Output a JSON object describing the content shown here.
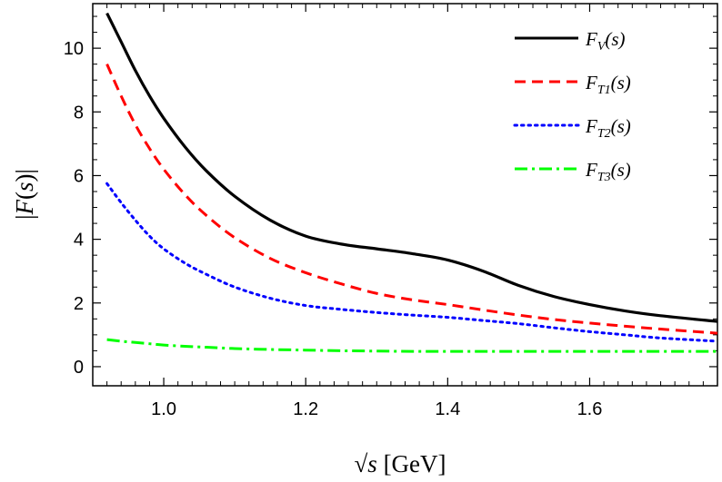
{
  "chart_data": {
    "type": "line",
    "xlabel": "√s [GeV]",
    "xlabel_parts": {
      "radical": "√",
      "var": "s",
      "unit": " [GeV]"
    },
    "ylabel": "|F(s)|",
    "ylabel_parts": {
      "bar_left": "|",
      "var": "F",
      "open": "(",
      "arg": "s",
      "close": ")",
      "bar_right": "|"
    },
    "xlim": [
      0.9,
      1.78
    ],
    "ylim": [
      -0.6,
      11.4
    ],
    "xticks": [
      1.0,
      1.2,
      1.4,
      1.6
    ],
    "xtick_labels": [
      "1.0",
      "1.2",
      "1.4",
      "1.6"
    ],
    "yticks": [
      0,
      2,
      4,
      6,
      8,
      10
    ],
    "ytick_labels": [
      "0",
      "2",
      "4",
      "6",
      "8",
      "10"
    ],
    "grid": false,
    "legend_position": "top-right",
    "x": [
      0.92,
      0.94,
      0.96,
      0.98,
      1.0,
      1.03,
      1.06,
      1.1,
      1.15,
      1.2,
      1.25,
      1.3,
      1.35,
      1.4,
      1.45,
      1.5,
      1.55,
      1.6,
      1.65,
      1.7,
      1.78
    ],
    "series": [
      {
        "name": "F_V(s)",
        "legend": {
          "base": "F",
          "sub": "V",
          "arg": "(s)"
        },
        "color": "#000000",
        "style": "solid",
        "values": [
          11.1,
          10.2,
          9.3,
          8.5,
          7.8,
          6.9,
          6.15,
          5.35,
          4.6,
          4.1,
          3.85,
          3.7,
          3.55,
          3.35,
          3.0,
          2.55,
          2.2,
          1.95,
          1.75,
          1.6,
          1.42
        ]
      },
      {
        "name": "F_T1(s)",
        "legend": {
          "base": "F",
          "sub": "T1",
          "arg": "(s)"
        },
        "color": "#ff0000",
        "style": "dashed",
        "values": [
          9.5,
          8.5,
          7.6,
          6.85,
          6.2,
          5.4,
          4.75,
          4.05,
          3.4,
          2.95,
          2.6,
          2.3,
          2.1,
          1.95,
          1.78,
          1.62,
          1.48,
          1.37,
          1.27,
          1.18,
          1.05
        ]
      },
      {
        "name": "F_T2(s)",
        "legend": {
          "base": "F",
          "sub": "T2",
          "arg": "(s)"
        },
        "color": "#0000ff",
        "style": "dotted",
        "values": [
          5.75,
          5.15,
          4.6,
          4.1,
          3.7,
          3.25,
          2.9,
          2.5,
          2.15,
          1.92,
          1.8,
          1.7,
          1.62,
          1.55,
          1.45,
          1.35,
          1.22,
          1.1,
          1.0,
          0.9,
          0.8
        ]
      },
      {
        "name": "F_T3(s)",
        "legend": {
          "base": "F",
          "sub": "T3",
          "arg": "(s)"
        },
        "color": "#00ff00",
        "style": "dashdot",
        "values": [
          0.85,
          0.8,
          0.76,
          0.72,
          0.68,
          0.64,
          0.61,
          0.57,
          0.54,
          0.52,
          0.5,
          0.49,
          0.48,
          0.48,
          0.48,
          0.48,
          0.48,
          0.48,
          0.48,
          0.48,
          0.48
        ]
      }
    ]
  }
}
